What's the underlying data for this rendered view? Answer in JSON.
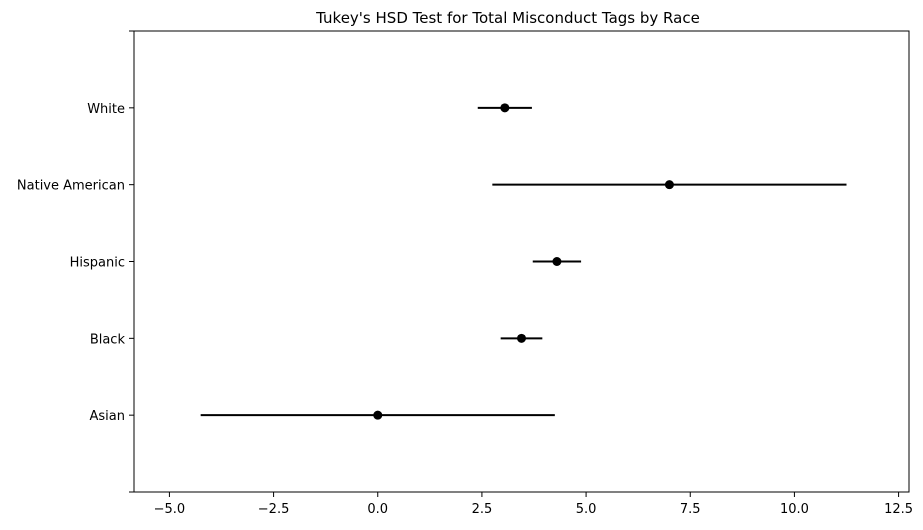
{
  "chart_data": {
    "type": "scatter",
    "title": "Tukey's HSD Test for Total Misconduct Tags by Race",
    "xlabel": "",
    "ylabel": "",
    "xlim": [
      -5.85,
      12.75
    ],
    "ylim": [
      -1,
      5
    ],
    "grid": false,
    "x_ticks": [
      {
        "value": -5.0,
        "label": "−5.0"
      },
      {
        "value": -2.5,
        "label": "−2.5"
      },
      {
        "value": 0.0,
        "label": "0.0"
      },
      {
        "value": 2.5,
        "label": "2.5"
      },
      {
        "value": 5.0,
        "label": "5.0"
      },
      {
        "value": 7.5,
        "label": "7.5"
      },
      {
        "value": 10.0,
        "label": "10.0"
      },
      {
        "value": 12.5,
        "label": "12.5"
      }
    ],
    "categories": [
      "Asian",
      "Black",
      "Hispanic",
      "Native American",
      "White"
    ],
    "means": [
      0.0,
      3.45,
      4.3,
      7.0,
      3.05
    ],
    "ci_low": [
      -4.25,
      2.95,
      3.72,
      2.75,
      2.4
    ],
    "ci_high": [
      4.25,
      3.95,
      4.88,
      11.25,
      3.7
    ],
    "color": "#000000"
  }
}
